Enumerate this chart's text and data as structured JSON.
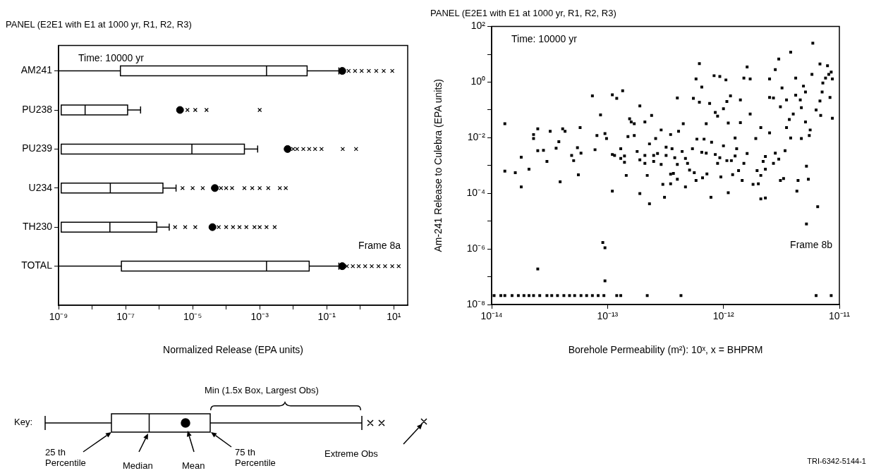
{
  "chart_data": [
    {
      "type": "box",
      "orientation": "horizontal",
      "title": "PANEL (E2E1 with E1 at 1000 yr, R1, R2, R3)",
      "xlabel": "Normalized Release (EPA units)",
      "color": "#000000",
      "marker": "cross",
      "log": "x",
      "categories": [
        "AM241",
        "PU238",
        "PU239",
        "U234",
        "TH230",
        "TOTAL"
      ],
      "boxes": [
        {
          "low": 1e-09,
          "q1": 7e-08,
          "median": 0.0016,
          "q3": 0.026,
          "high": 0.23,
          "mean": 0.29,
          "outliers": [
            0.45,
            0.7,
            1.1,
            1.8,
            3,
            5,
            9
          ]
        },
        {
          "low": null,
          "q1": 1.2e-09,
          "median": 6.2e-09,
          "q3": 1.15e-07,
          "high": 2.8e-07,
          "mean": 4.2e-06,
          "outliers": [
            7e-06,
            1.2e-05,
            2.6e-05,
            0.001
          ]
        },
        {
          "low": null,
          "q1": 1.2e-09,
          "median": 9.5e-06,
          "q3": 0.00035,
          "high": 0.00087,
          "mean": 0.0068,
          "outliers": [
            0.01,
            0.013,
            0.02,
            0.03,
            0.045,
            0.07,
            0.3,
            0.75
          ]
        },
        {
          "low": null,
          "q1": 1.2e-09,
          "median": 3.5e-08,
          "q3": 1.3e-06,
          "high": 3.2e-06,
          "mean": 4.6e-05,
          "outliers": [
            5e-06,
            1e-05,
            2e-05,
            7e-05,
            0.0001,
            0.00015,
            0.00035,
            0.0006,
            0.001,
            0.0018,
            0.004,
            0.006
          ]
        },
        {
          "low": null,
          "q1": 1.2e-09,
          "median": 3.4e-08,
          "q3": 8.5e-07,
          "high": 2e-06,
          "mean": 3.9e-05,
          "outliers": [
            3e-06,
            6e-06,
            1.2e-05,
            6e-05,
            0.0001,
            0.00016,
            0.00025,
            0.0004,
            0.0007,
            0.001,
            0.0016,
            0.0028
          ]
        },
        {
          "low": 1e-09,
          "q1": 7.5e-08,
          "median": 0.0016,
          "q3": 0.03,
          "high": 0.23,
          "mean": 0.29,
          "outliers": [
            0.4,
            0.6,
            0.9,
            1.4,
            2.2,
            3.5,
            5.5,
            9,
            14
          ]
        }
      ],
      "xlim": [
        1e-09,
        26
      ],
      "xticks": [
        {
          "value": 1e-09,
          "label": "10⁻⁹"
        },
        {
          "value": 1e-08,
          "label": null
        },
        {
          "value": 1e-07,
          "label": "10⁻⁷"
        },
        {
          "value": 1e-06,
          "label": null
        },
        {
          "value": 1e-05,
          "label": "10⁻⁵"
        },
        {
          "value": 0.0001,
          "label": null
        },
        {
          "value": 0.001,
          "label": "10⁻³"
        },
        {
          "value": 0.01,
          "label": null
        },
        {
          "value": 0.1,
          "label": "10⁻¹"
        },
        {
          "value": 1,
          "label": null
        },
        {
          "value": 10,
          "label": "10¹"
        }
      ],
      "annotations": [
        "Time: 10000 yr",
        "Frame 8a",
        "Key:",
        "Min (1.5x Box, Largest Obs)",
        "25 th Percentile",
        "Median",
        "Mean",
        "75 th Percentile",
        "Extreme Obs"
      ]
    },
    {
      "type": "scatter",
      "title": "PANEL (E2E1 with E1 at 1000 yr, R1, R2, R3)",
      "xlabel": "Borehole Permeability (m²): 10ˣ, x = BHPRM",
      "ylabel": "Am-241 Release to Culebra (EPA units)",
      "color": "#000000",
      "marker": "square",
      "log": "xy",
      "x": [
        1.3e-14,
        1.3e-14,
        1.6e-14,
        1.8e-14,
        1.8e-14,
        2.1e-14,
        2.3e-14,
        2.3e-14,
        2.5e-14,
        2.5e-14,
        2.8e-14,
        3e-14,
        3.2e-14,
        3.6e-14,
        3.8e-14,
        3.9e-14,
        4.1e-14,
        4.3e-14,
        4.9e-14,
        5.1e-14,
        5.5e-14,
        5.6e-14,
        5.8e-14,
        5.9e-14,
        7.4e-14,
        7.8e-14,
        8.1e-14,
        8.7e-14,
        9.5e-14,
        9.8e-14,
        1.1e-13,
        1.1e-13,
        1.1e-13,
        1.15e-13,
        1.2e-13,
        1.3e-13,
        1.3e-13,
        1.35e-13,
        1.4e-13,
        1.4e-13,
        1.45e-13,
        1.5e-13,
        1.55e-13,
        1.6e-13,
        1.7e-13,
        1.7e-13,
        1.8e-13,
        1.9e-13,
        1.9e-13,
        1.9e-13,
        2.1e-13,
        2.1e-13,
        2.1e-13,
        2.2e-13,
        2.3e-13,
        2.3e-13,
        2.4e-13,
        2.5e-13,
        2.5e-13,
        2.6e-13,
        2.7e-13,
        2.9e-13,
        2.9e-13,
        3e-13,
        3.1e-13,
        3.2e-13,
        3.2e-13,
        3.5e-13,
        3.5e-13,
        3.5e-13,
        3.6e-13,
        3.7e-13,
        3.8e-13,
        4e-13,
        4e-13,
        4e-13,
        4.1e-13,
        4.4e-13,
        4.5e-13,
        4.7e-13,
        4.7e-13,
        4.9e-13,
        5.1e-13,
        5.4e-13,
        5.5e-13,
        5.6e-13,
        5.8e-13,
        5.8e-13,
        5.9e-13,
        6.2e-13,
        6.2e-13,
        6.5e-13,
        6.5e-13,
        6.6e-13,
        6.8e-13,
        7.1e-13,
        7.1e-13,
        7.2e-13,
        7.6e-13,
        7.8e-13,
        7.9e-13,
        8.3e-13,
        8.5e-13,
        8.9e-13,
        8.5e-13,
        8.9e-13,
        9.3e-13,
        9.3e-13,
        9.5e-13,
        1e-12,
        1e-12,
        1.05e-12,
        1.07e-12,
        1.07e-12,
        1.1e-12,
        1.15e-12,
        1.1e-12,
        1.17e-12,
        1.2e-12,
        1.26e-12,
        1.26e-12,
        1.3e-12,
        1.35e-12,
        1.4e-12,
        1.4e-12,
        1.45e-12,
        1.5e-12,
        1.5e-12,
        1.6e-12,
        1.7e-12,
        1.6e-12,
        1.7e-12,
        1.8e-12,
        1.9e-12,
        1.95e-12,
        2e-12,
        2.1e-12,
        2.1e-12,
        2.1e-12,
        2.2e-12,
        2.3e-12,
        2.3e-12,
        2.3e-12,
        2.5e-12,
        2.5e-12,
        2.5e-12,
        2.7e-12,
        2.7e-12,
        2.8e-12,
        2.8e-12,
        3e-12,
        3e-12,
        3.1e-12,
        3.1e-12,
        3.2e-12,
        3.3e-12,
        3.4e-12,
        3.5e-12,
        3.5e-12,
        3.7e-12,
        3.8e-12,
        3.8e-12,
        4e-12,
        4.2e-12,
        4.2e-12,
        4.3e-12,
        4.4e-12,
        4.6e-12,
        4.7e-12,
        4.7e-12,
        4.9e-12,
        5.1e-12,
        5.1e-12,
        5.2e-12,
        5.4e-12,
        5.5e-12,
        5.6e-12,
        5.8e-12,
        5.9e-12,
        6.3e-12,
        6.5e-12,
        6.8e-12,
        6.8e-12,
        6.9e-12,
        7.1e-12,
        7.2e-12,
        7.6e-12,
        7.9e-12,
        8.1e-12,
        8.3e-12,
        8.5e-12,
        8.7e-12,
        8.7e-12,
        5.2e-12,
        2.5e-14,
        9.1e-14,
        9.5e-14,
        9.5e-14,
        1.05e-14,
        1.2e-14,
        1.3e-14,
        1.5e-14,
        1.7e-14,
        1.9e-14,
        2.1e-14,
        2.3e-14,
        2.6e-14,
        3e-14,
        3.3e-14,
        3.7e-14,
        4.2e-14,
        4.7e-14,
        5.2e-14,
        5.9e-14,
        6.6e-14,
        7.4e-14,
        8.3e-14,
        9.3e-14,
        1.2e-13,
        1.3e-13,
        2.2e-13,
        4.3e-13,
        6.3e-12,
        8.5e-12
      ],
      "values": [
        0.032,
        0.00063,
        0.00055,
        0.00017,
        0.002,
        0.00074,
        0.013,
        0.0093,
        0.021,
        0.0034,
        0.0035,
        0.0014,
        0.017,
        0.0042,
        0.0072,
        0.00026,
        0.021,
        0.017,
        0.0023,
        0.0015,
        0.0044,
        0.00046,
        0.023,
        0.0028,
        0.32,
        0.0037,
        0.012,
        0.066,
        0.014,
        0.0093,
        0.35,
        0.00012,
        0.0025,
        0.0023,
        0.26,
        0.004,
        0.0018,
        0.49,
        0.0022,
        0.0013,
        0.00044,
        0.011,
        0.048,
        0.037,
        0.032,
        0.012,
        0.0032,
        0.0016,
        0.14,
        9.8e-05,
        0.037,
        0.0023,
        0.0012,
        0.00044,
        0.006,
        4.2e-05,
        0.063,
        0.0023,
        0.0014,
        0.0093,
        0.0027,
        0.019,
        0.0011,
        0.00021,
        7.2e-05,
        0.0046,
        0.0023,
        0.013,
        0.00049,
        0.00022,
        0.004,
        0.00052,
        0.0019,
        0.0011,
        0.27,
        0.00032,
        0.017,
        0.0032,
        0.032,
        0.0018,
        0.00017,
        0.0012,
        0.00069,
        0.004,
        0.26,
        0.00055,
        1.3,
        0.00029,
        0.0089,
        4.6,
        0.19,
        0.66,
        0.003,
        0.00036,
        0.0089,
        0.032,
        0.0028,
        0.0005,
        0.17,
        7.2e-05,
        0.0069,
        1.7,
        0.081,
        0.06,
        0.0025,
        0.0012,
        1.6,
        0.0019,
        0.00039,
        0.0051,
        0.11,
        1.2,
        0.2,
        0.0015,
        0.034,
        0.32,
        0.000105,
        0.0015,
        0.00047,
        0.0098,
        0.0022,
        0.004,
        0.00066,
        0.035,
        0.23,
        0.00029,
        1.4,
        0.0012,
        3.5,
        1.3,
        0.0027,
        0.071,
        0.00021,
        0.0093,
        0.00066,
        0.00022,
        0.023,
        0.00044,
        6.3e-05,
        0.0014,
        6.8e-05,
        0.0021,
        0.00074,
        1.3,
        0.28,
        0.015,
        0.27,
        0.0012,
        0.0028,
        2.8,
        6.8,
        0.0017,
        0.00029,
        0.13,
        0.62,
        0.00034,
        0.0034,
        0.23,
        0.023,
        0.045,
        12,
        0.0098,
        0.071,
        1.4,
        0.34,
        0.00012,
        0.00029,
        0.23,
        0.12,
        0.0093,
        0.72,
        0.44,
        0.037,
        0.00095,
        0.00032,
        0.012,
        0.019,
        1.9,
        25,
        0.1,
        3.3e-05,
        0.21,
        4.5,
        0.063,
        0.44,
        0.93,
        1.4,
        3.9,
        1.9,
        0.28,
        2.3,
        0.05,
        1.3,
        7.9e-06,
        1.9e-07,
        1.7e-06,
        1.1e-06,
        7.1e-08,
        2.1e-08,
        2.1e-08,
        2.1e-08,
        2.1e-08,
        2.1e-08,
        2.1e-08,
        2.1e-08,
        2.1e-08,
        2.1e-08,
        2.1e-08,
        2.1e-08,
        2.1e-08,
        2.1e-08,
        2.1e-08,
        2.1e-08,
        2.1e-08,
        2.1e-08,
        2.1e-08,
        2.1e-08,
        2.1e-08,
        2.1e-08,
        2.1e-08,
        2.1e-08,
        2.1e-08,
        2.1e-08,
        2.1e-08
      ],
      "xlim": [
        1e-14,
        1e-11
      ],
      "xticks": [
        {
          "value": 1e-14,
          "label": "10⁻¹⁴"
        },
        {
          "value": 1e-13,
          "label": "10⁻¹³"
        },
        {
          "value": 1e-12,
          "label": "10⁻¹²"
        },
        {
          "value": 1e-11,
          "label": "10⁻¹¹"
        }
      ],
      "ylim": [
        1e-08,
        100
      ],
      "yticks": [
        {
          "value": 1e-08,
          "label": "10⁻⁸"
        },
        {
          "value": 1e-07,
          "label": null
        },
        {
          "value": 1e-06,
          "label": "10⁻⁶"
        },
        {
          "value": 1e-05,
          "label": null
        },
        {
          "value": 0.0001,
          "label": "10⁻⁴"
        },
        {
          "value": 0.001,
          "label": null
        },
        {
          "value": 0.01,
          "label": "10⁻²"
        },
        {
          "value": 0.1,
          "label": null
        },
        {
          "value": 1,
          "label": "10⁰"
        },
        {
          "value": 10,
          "label": null
        },
        {
          "value": 100,
          "label": "10²"
        }
      ],
      "annotations": [
        "Time: 10000 yr",
        "Frame 8b",
        "TRI-6342-5144-1"
      ]
    }
  ]
}
